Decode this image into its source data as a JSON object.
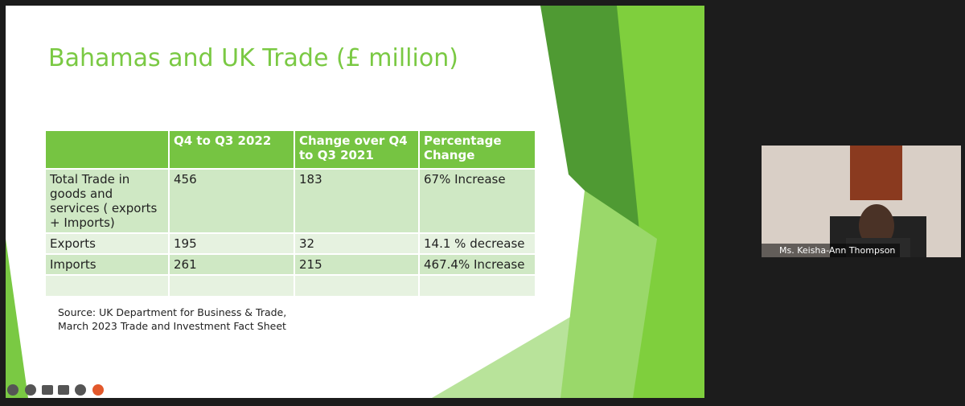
{
  "slide": {
    "title": "Bahamas and UK Trade (£ million)",
    "table": {
      "header": [
        "Q4 to Q3 2022",
        "Change over Q4 to Q3 2021",
        "Percentage Change"
      ],
      "rows": [
        [
          "Total Trade in goods and services ( exports + Imports)",
          "456",
          "183",
          "67% Increase"
        ],
        [
          "Exports",
          "195",
          "32",
          "14.1 % decrease"
        ],
        [
          "Imports",
          "261",
          "215",
          " 467.4% Increase"
        ]
      ]
    },
    "source": "Source: UK Department for Business & Trade, March 2023 Trade and Investment Fact Sheet"
  },
  "participant": {
    "name": "Ms. Keisha-Ann Thompson"
  }
}
